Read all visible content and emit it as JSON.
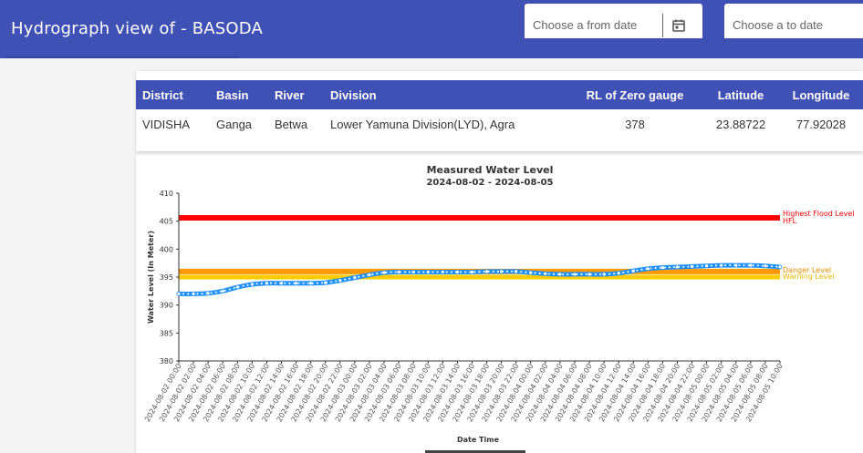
{
  "header": {
    "title": "Hydrograph view of - BASODA",
    "from_placeholder": "Choose a from date",
    "to_placeholder": "Choose a to date"
  },
  "info_table": {
    "headers": [
      "District",
      "Basin",
      "River",
      "Division",
      "RL of Zero gauge",
      "Latitude",
      "Longitude"
    ],
    "row": [
      "VIDISHA",
      "Ganga",
      "Betwa",
      "Lower Yamuna Division(LYD), Agra",
      "378",
      "23.88722",
      "77.92028"
    ]
  },
  "colors": {
    "header_bg": "#3f51b5",
    "hfl": "#ff0000",
    "danger": "#ff9900",
    "warning": "#ffcc00",
    "series": "#1e90ff"
  },
  "chart_data": {
    "type": "line",
    "title": "Measured Water Level",
    "subtitle": "2024-08-02 - 2024-08-05",
    "xlabel": "Date Time",
    "ylabel": "Water Level (In Meter)",
    "ylim": [
      380,
      410
    ],
    "yticks": [
      380,
      385,
      390,
      395,
      400,
      405,
      410
    ],
    "grid": false,
    "x": [
      "2024-08-02 00:00",
      "2024-08-02 02:00",
      "2024-08-02 04:00",
      "2024-08-02 06:00",
      "2024-08-02 08:00",
      "2024-08-02 10:00",
      "2024-08-02 12:00",
      "2024-08-02 14:00",
      "2024-08-02 16:00",
      "2024-08-02 18:00",
      "2024-08-02 20:00",
      "2024-08-02 22:00",
      "2024-08-03 00:00",
      "2024-08-03 02:00",
      "2024-08-03 04:00",
      "2024-08-03 06:00",
      "2024-08-03 08:00",
      "2024-08-03 10:00",
      "2024-08-03 12:00",
      "2024-08-03 14:00",
      "2024-08-03 16:00",
      "2024-08-03 18:00",
      "2024-08-03 20:00",
      "2024-08-03 22:00",
      "2024-08-04 00:00",
      "2024-08-04 02:00",
      "2024-08-04 04:00",
      "2024-08-04 06:00",
      "2024-08-04 08:00",
      "2024-08-04 10:00",
      "2024-08-04 12:00",
      "2024-08-04 14:00",
      "2024-08-04 16:00",
      "2024-08-04 18:00",
      "2024-08-04 20:00",
      "2024-08-04 22:00",
      "2024-08-05 00:00",
      "2024-08-05 02:00",
      "2024-08-05 04:00",
      "2024-08-05 06:00",
      "2024-08-05 08:00",
      "2024-08-05 10:00"
    ],
    "series": [
      {
        "values": [
          392.0,
          392.0,
          392.1,
          392.5,
          393.2,
          393.7,
          393.9,
          393.9,
          393.9,
          393.9,
          394.0,
          394.4,
          394.9,
          395.4,
          395.8,
          395.9,
          395.9,
          395.9,
          395.9,
          395.9,
          395.9,
          396.0,
          396.0,
          396.0,
          395.8,
          395.6,
          395.5,
          395.5,
          395.5,
          395.5,
          395.7,
          396.1,
          396.5,
          396.7,
          396.8,
          396.9,
          397.0,
          397.1,
          397.1,
          397.1,
          397.0,
          396.8
        ]
      }
    ],
    "reference_lines": [
      {
        "name": "Highest Flood Level",
        "short": "HFL",
        "value": 405.6
      },
      {
        "name": "Danger Level",
        "value": 396.0
      },
      {
        "name": "Warning Level",
        "value": 395.0
      }
    ]
  }
}
